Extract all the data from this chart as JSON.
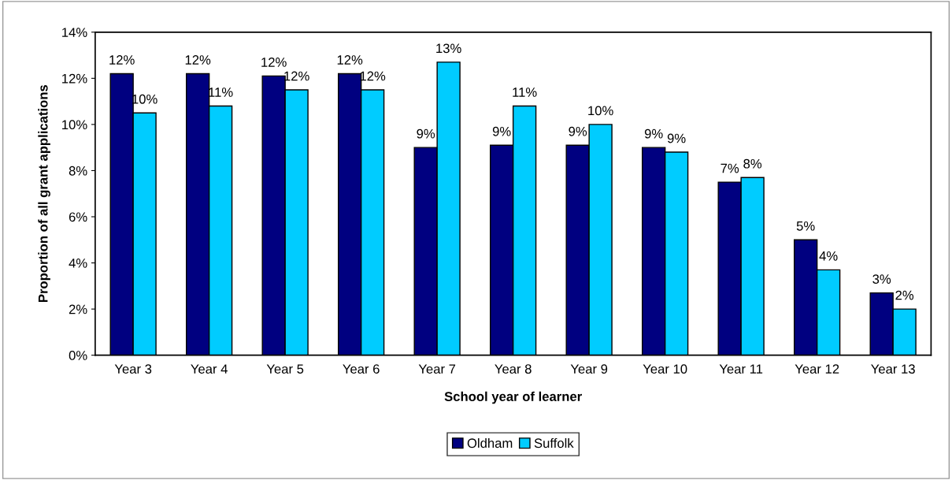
{
  "chart_data": {
    "type": "bar",
    "xlabel": "School year of learner",
    "ylabel": "Proportion of all grant applications",
    "categories": [
      "Year 3",
      "Year 4",
      "Year 5",
      "Year 6",
      "Year 7",
      "Year 8",
      "Year 9",
      "Year 10",
      "Year 11",
      "Year 12",
      "Year 13"
    ],
    "series": [
      {
        "name": "Oldham",
        "color": "#000080",
        "values": [
          12.2,
          12.2,
          12.1,
          12.2,
          9.0,
          9.1,
          9.1,
          9.0,
          7.5,
          5.0,
          2.7
        ],
        "value_labels": [
          "12%",
          "12%",
          "12%",
          "12%",
          "9%",
          "9%",
          "9%",
          "9%",
          "7%",
          "5%",
          "3%"
        ]
      },
      {
        "name": "Suffolk",
        "color": "#00ccff",
        "values": [
          10.5,
          10.8,
          11.5,
          11.5,
          12.7,
          10.8,
          10.0,
          8.8,
          7.7,
          3.7,
          2.0
        ],
        "value_labels": [
          "10%",
          "11%",
          "12%",
          "12%",
          "13%",
          "11%",
          "10%",
          "9%",
          "8%",
          "4%",
          "2%"
        ]
      }
    ],
    "ylim": [
      0,
      14
    ],
    "yticks": [
      {
        "value": 0,
        "label": "0%"
      },
      {
        "value": 2,
        "label": "2%"
      },
      {
        "value": 4,
        "label": "4%"
      },
      {
        "value": 6,
        "label": "6%"
      },
      {
        "value": 8,
        "label": "8%"
      },
      {
        "value": 10,
        "label": "10%"
      },
      {
        "value": 12,
        "label": "12%"
      },
      {
        "value": 14,
        "label": "14%"
      }
    ],
    "grid": false,
    "legend": "bottom"
  }
}
